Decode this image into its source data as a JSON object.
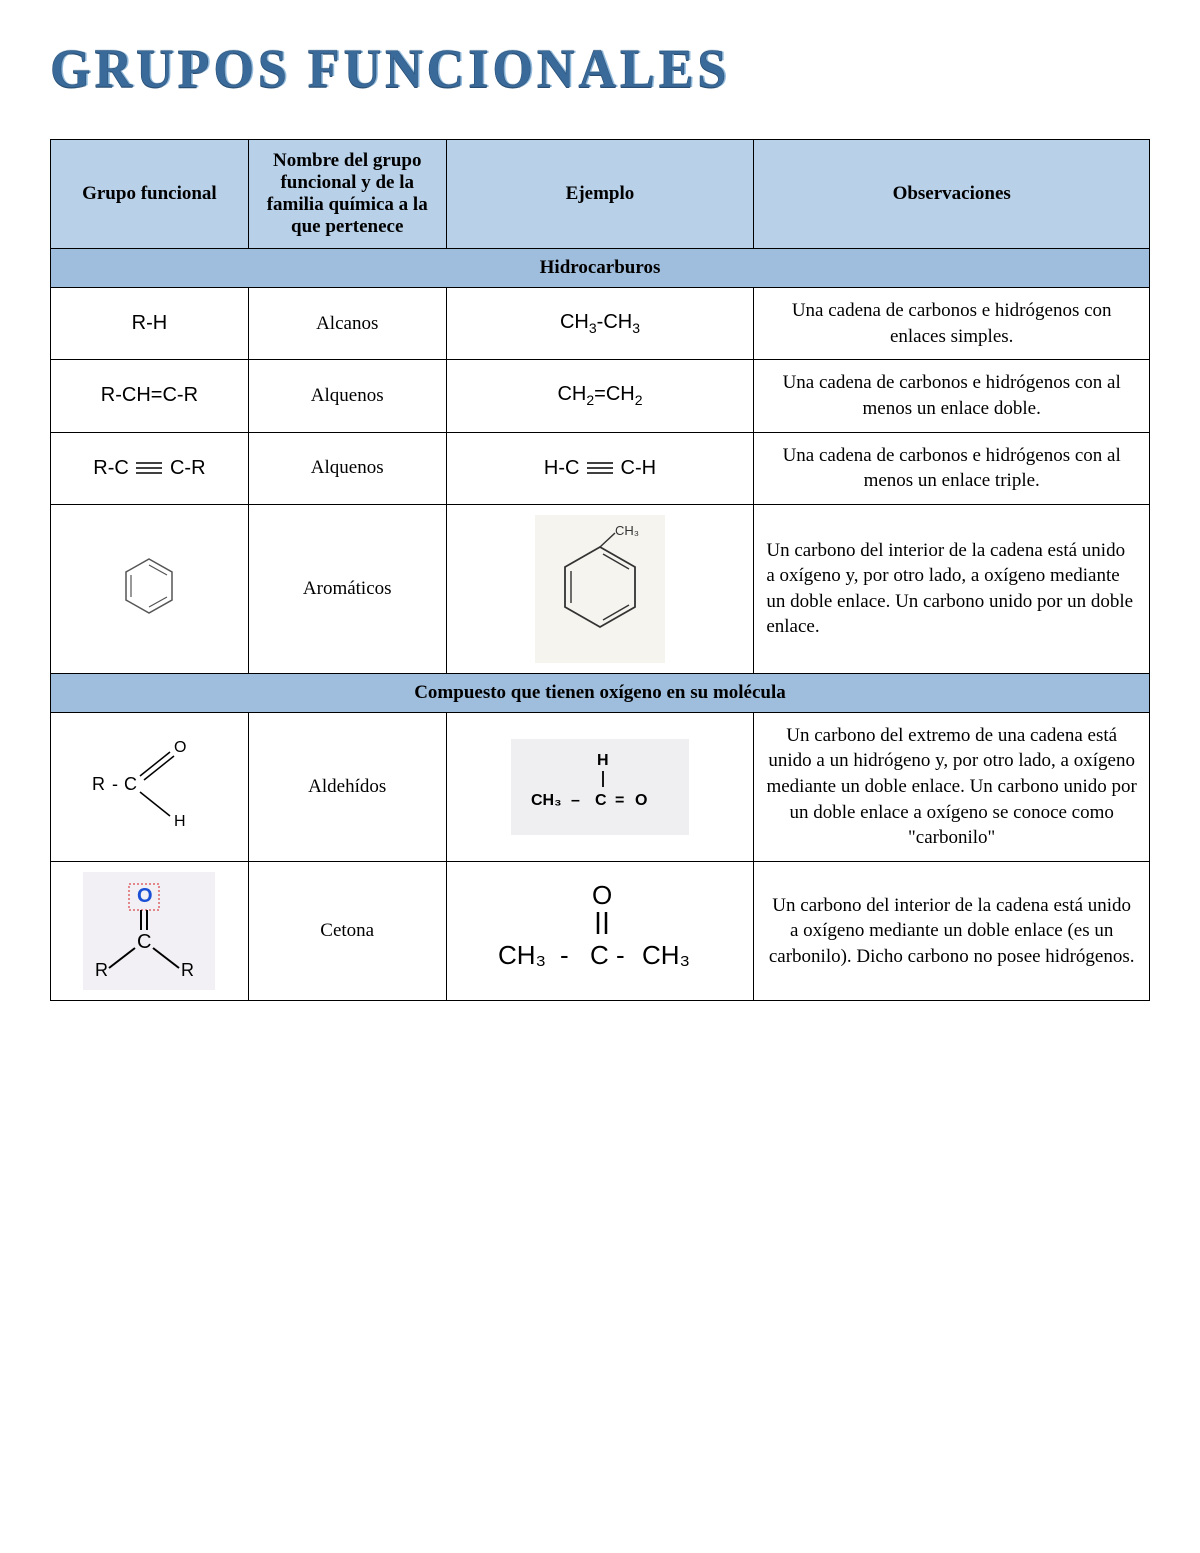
{
  "title": "GRUPOS FUNCIONALES",
  "colors": {
    "header_bg": "#b8d0e8",
    "section_bg": "#9fbedd",
    "border": "#000000",
    "title_main": "#3a6a9a",
    "title_light": "#9cc0df",
    "title_dark": "#2a4f73",
    "oxygen_blue": "#1a4fd6",
    "box_red": "#d02020"
  },
  "headers": {
    "c1": "Grupo funcional",
    "c2": "Nombre del grupo funcional y de la familia química a la que pertenece",
    "c3": "Ejemplo",
    "c4": "Observaciones"
  },
  "sections": [
    {
      "title": "Hidrocarburos",
      "rows": [
        {
          "group": "R-H",
          "group_type": "text",
          "name": "Alcanos",
          "example": "CH3-CH3",
          "example_type": "subtext",
          "obs": "Una cadena de carbonos e hidrógenos con enlaces simples.",
          "obs_align": "center"
        },
        {
          "group": "R-CH=C-R",
          "group_type": "text",
          "name": "Alquenos",
          "example": "CH2=CH2",
          "example_type": "subtext",
          "obs": "Una cadena de carbonos e hidrógenos con al menos un enlace doble.",
          "obs_align": "center"
        },
        {
          "group": "R-C ≡ C-R",
          "group_type": "triple",
          "name": "Alquenos",
          "example": "H-C ≡ C-H",
          "example_type": "triple",
          "obs": "Una cadena de carbonos e hidrógenos con al menos un enlace triple.",
          "obs_align": "center"
        },
        {
          "group": "benzene",
          "group_type": "svg_benzene",
          "name": "Aromáticos",
          "example": "toluene",
          "example_type": "svg_toluene",
          "obs": "Un carbono del interior de la cadena está unido a oxígeno y, por otro lado, a oxígeno mediante un doble enlace. Un carbono unido por un doble enlace.",
          "obs_align": "left"
        }
      ]
    },
    {
      "title": "Compuesto que tienen oxígeno en su molécula",
      "rows": [
        {
          "group": "aldehyde",
          "group_type": "svg_aldehyde",
          "name": "Aldehídos",
          "example": "acetaldehyde",
          "example_type": "svg_acetald",
          "obs": "Un carbono del extremo de una cadena está unido a un hidrógeno y, por otro lado, a oxígeno mediante un doble enlace. Un carbono unido por un doble enlace a oxígeno se conoce como \"carbonilo\"",
          "obs_align": "center"
        },
        {
          "group": "ketone",
          "group_type": "svg_ketone",
          "name": "Cetona",
          "example": "acetone",
          "example_type": "svg_acetone",
          "obs": "Un carbono del interior de la cadena está unido a oxígeno mediante un doble enlace (es un carbonilo). Dicho carbono no posee hidrógenos.",
          "obs_align": "center"
        }
      ]
    }
  ]
}
